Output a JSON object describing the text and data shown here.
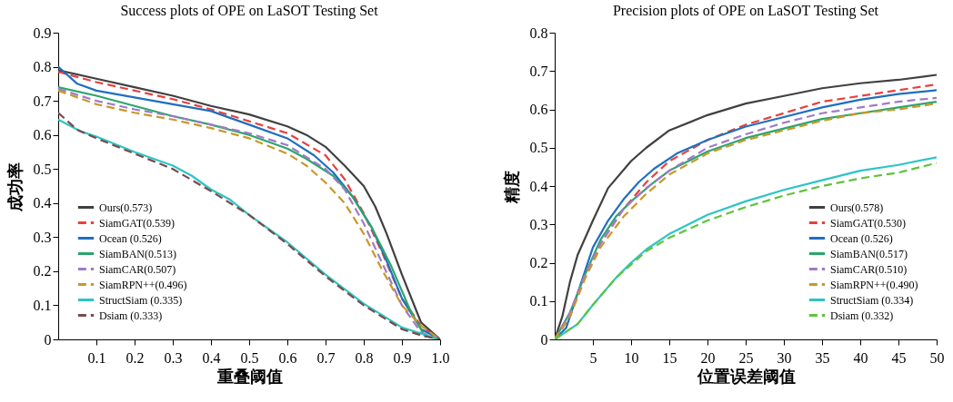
{
  "chart_data": [
    {
      "type": "line",
      "title": "Success plots of OPE on LaSOT Testing Set",
      "xlabel": "重叠阈值",
      "ylabel": "成功率",
      "xlim": [
        0,
        1
      ],
      "ylim": [
        0,
        0.9
      ],
      "xticks": [
        0.1,
        0.2,
        0.3,
        0.4,
        0.5,
        0.6,
        0.7,
        0.8,
        0.9,
        {
          "value": 1,
          "label": "1.0"
        }
      ],
      "yticks": [
        0,
        0.1,
        0.2,
        0.3,
        0.4,
        0.5,
        0.6,
        0.7,
        0.8,
        0.9
      ],
      "grid": false,
      "legend": "bottom left",
      "series": [
        {
          "name": "Ours(0.573)",
          "color": "#404040",
          "line_style": "solid",
          "x": [
            0,
            0.1,
            0.2,
            0.3,
            0.4,
            0.5,
            0.6,
            0.65,
            0.7,
            0.75,
            0.8,
            0.83,
            0.86,
            0.9,
            0.95,
            1.0
          ],
          "values": [
            0.79,
            0.765,
            0.74,
            0.715,
            0.685,
            0.66,
            0.625,
            0.6,
            0.565,
            0.51,
            0.45,
            0.39,
            0.31,
            0.19,
            0.05,
            0
          ]
        },
        {
          "name": "SiamGAT(0.539)",
          "color": "#e8413c",
          "line_style": "dashed",
          "x": [
            0,
            0.1,
            0.2,
            0.3,
            0.4,
            0.5,
            0.6,
            0.7,
            0.75,
            0.8,
            0.85,
            0.9,
            0.95,
            1.0
          ],
          "values": [
            0.785,
            0.755,
            0.73,
            0.705,
            0.675,
            0.64,
            0.605,
            0.54,
            0.47,
            0.37,
            0.25,
            0.12,
            0.04,
            0
          ]
        },
        {
          "name": "Ocean (0.526)",
          "color": "#1f6fbf",
          "line_style": "solid",
          "x": [
            0,
            0.05,
            0.1,
            0.2,
            0.3,
            0.4,
            0.5,
            0.6,
            0.67,
            0.72,
            0.77,
            0.82,
            0.86,
            0.9,
            0.95,
            1.0
          ],
          "values": [
            0.8,
            0.75,
            0.73,
            0.71,
            0.69,
            0.67,
            0.63,
            0.59,
            0.54,
            0.49,
            0.42,
            0.33,
            0.23,
            0.12,
            0.03,
            0
          ]
        },
        {
          "name": "SiamBAN(0.513)",
          "color": "#2ca66b",
          "line_style": "solid",
          "x": [
            0,
            0.1,
            0.2,
            0.3,
            0.4,
            0.5,
            0.6,
            0.65,
            0.72,
            0.77,
            0.82,
            0.87,
            0.92,
            0.96,
            1.0
          ],
          "values": [
            0.74,
            0.715,
            0.685,
            0.655,
            0.63,
            0.6,
            0.56,
            0.53,
            0.48,
            0.42,
            0.33,
            0.22,
            0.09,
            0.01,
            0
          ]
        },
        {
          "name": "SiamCAR(0.507)",
          "color": "#a07ac8",
          "line_style": "dashed",
          "x": [
            0,
            0.1,
            0.2,
            0.3,
            0.4,
            0.5,
            0.6,
            0.7,
            0.75,
            0.8,
            0.85,
            0.9,
            0.95,
            1.0
          ],
          "values": [
            0.735,
            0.7,
            0.675,
            0.655,
            0.63,
            0.605,
            0.57,
            0.5,
            0.44,
            0.34,
            0.22,
            0.1,
            0.02,
            0
          ]
        },
        {
          "name": "SiamRPN++(0.496)",
          "color": "#c9982a",
          "line_style": "dashed",
          "x": [
            0,
            0.1,
            0.2,
            0.3,
            0.4,
            0.5,
            0.6,
            0.65,
            0.7,
            0.75,
            0.8,
            0.85,
            0.9,
            0.95,
            1.0
          ],
          "values": [
            0.73,
            0.69,
            0.665,
            0.645,
            0.62,
            0.59,
            0.545,
            0.51,
            0.46,
            0.4,
            0.31,
            0.2,
            0.1,
            0.04,
            0
          ]
        },
        {
          "name": "StructSiam (0.335)",
          "color": "#2ec4c4",
          "line_style": "solid",
          "x": [
            0,
            0.06,
            0.1,
            0.2,
            0.3,
            0.35,
            0.4,
            0.45,
            0.5,
            0.6,
            0.7,
            0.8,
            0.9,
            0.97,
            1.0
          ],
          "values": [
            0.645,
            0.61,
            0.595,
            0.55,
            0.51,
            0.48,
            0.44,
            0.41,
            0.365,
            0.285,
            0.19,
            0.105,
            0.035,
            0.01,
            0
          ]
        },
        {
          "name": "Dsiam (0.333)",
          "color": "#7a4a4a",
          "line_style": "dashed",
          "x": [
            0,
            0.05,
            0.1,
            0.2,
            0.3,
            0.4,
            0.45,
            0.5,
            0.6,
            0.7,
            0.8,
            0.9,
            0.95,
            1.0
          ],
          "values": [
            0.665,
            0.615,
            0.59,
            0.545,
            0.5,
            0.435,
            0.4,
            0.365,
            0.28,
            0.185,
            0.1,
            0.03,
            0.012,
            0
          ]
        }
      ]
    },
    {
      "type": "line",
      "title": "Precision plots of OPE on LaSOT Testing Set",
      "xlabel": "位置误差阈值",
      "ylabel": "精度",
      "xlim": [
        0,
        50
      ],
      "ylim": [
        0,
        0.8
      ],
      "xticks": [
        5,
        10,
        15,
        20,
        25,
        30,
        35,
        40,
        45,
        50
      ],
      "yticks": [
        0,
        0.1,
        0.2,
        0.3,
        0.4,
        0.5,
        0.6,
        0.7,
        0.8
      ],
      "grid": false,
      "legend": "bottom right",
      "series": [
        {
          "name": "Ours(0.578)",
          "color": "#404040",
          "line_style": "solid",
          "x": [
            0,
            1,
            2,
            3,
            5,
            7,
            10,
            12,
            15,
            20,
            25,
            30,
            35,
            40,
            45,
            50
          ],
          "values": [
            0,
            0.06,
            0.15,
            0.22,
            0.31,
            0.395,
            0.465,
            0.5,
            0.545,
            0.585,
            0.615,
            0.635,
            0.655,
            0.668,
            0.677,
            0.69
          ]
        },
        {
          "name": "SiamGAT(0.530)",
          "color": "#e8413c",
          "line_style": "dashed",
          "x": [
            0,
            2,
            4,
            6,
            9,
            12,
            15,
            20,
            25,
            30,
            35,
            40,
            45,
            50
          ],
          "values": [
            0,
            0.06,
            0.17,
            0.25,
            0.34,
            0.41,
            0.465,
            0.52,
            0.56,
            0.59,
            0.62,
            0.635,
            0.65,
            0.665
          ]
        },
        {
          "name": "Ocean (0.526)",
          "color": "#1f6fbf",
          "line_style": "solid",
          "x": [
            0,
            1.5,
            3,
            5,
            7,
            9,
            11,
            13,
            16,
            20,
            25,
            30,
            35,
            40,
            45,
            50
          ],
          "values": [
            0,
            0.03,
            0.12,
            0.24,
            0.31,
            0.365,
            0.41,
            0.445,
            0.485,
            0.52,
            0.555,
            0.58,
            0.605,
            0.625,
            0.64,
            0.65
          ]
        },
        {
          "name": "SiamBAN(0.517)",
          "color": "#2ca66b",
          "line_style": "solid",
          "x": [
            0,
            2,
            4,
            6,
            8,
            10,
            13,
            15,
            20,
            25,
            30,
            35,
            40,
            45,
            50
          ],
          "values": [
            0,
            0.07,
            0.17,
            0.26,
            0.32,
            0.36,
            0.41,
            0.44,
            0.49,
            0.525,
            0.55,
            0.575,
            0.59,
            0.605,
            0.62
          ]
        },
        {
          "name": "SiamCAR(0.510)",
          "color": "#a07ac8",
          "line_style": "dashed",
          "x": [
            0,
            2,
            4,
            6,
            9,
            12,
            15,
            20,
            25,
            30,
            35,
            40,
            45,
            50
          ],
          "values": [
            0,
            0.07,
            0.17,
            0.25,
            0.34,
            0.395,
            0.44,
            0.5,
            0.535,
            0.565,
            0.59,
            0.605,
            0.62,
            0.63
          ]
        },
        {
          "name": "SiamRPN++(0.490)",
          "color": "#c9982a",
          "line_style": "dashed",
          "x": [
            0,
            2,
            4,
            6,
            9,
            12,
            15,
            20,
            25,
            30,
            35,
            40,
            45,
            50
          ],
          "values": [
            0,
            0.06,
            0.16,
            0.24,
            0.32,
            0.38,
            0.43,
            0.485,
            0.52,
            0.545,
            0.57,
            0.59,
            0.6,
            0.615
          ]
        },
        {
          "name": "StructSiam (0.334)",
          "color": "#2ec4c4",
          "line_style": "solid",
          "x": [
            0,
            3,
            5,
            8,
            10,
            12,
            15,
            20,
            25,
            30,
            35,
            40,
            45,
            50
          ],
          "values": [
            0,
            0.04,
            0.09,
            0.16,
            0.2,
            0.235,
            0.275,
            0.325,
            0.36,
            0.39,
            0.415,
            0.44,
            0.455,
            0.475
          ]
        },
        {
          "name": "Dsiam (0.332)",
          "color": "#5ec43a",
          "line_style": "dashed",
          "x": [
            0,
            3,
            5,
            8,
            10,
            12,
            15,
            20,
            25,
            30,
            35,
            40,
            45,
            50
          ],
          "values": [
            0,
            0.04,
            0.09,
            0.16,
            0.195,
            0.23,
            0.265,
            0.31,
            0.345,
            0.375,
            0.4,
            0.42,
            0.435,
            0.46
          ]
        }
      ]
    }
  ]
}
